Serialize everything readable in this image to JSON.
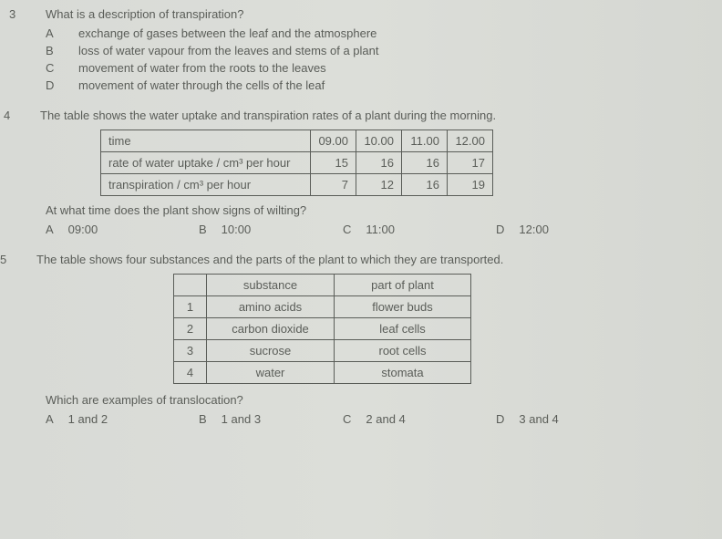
{
  "q3": {
    "number": "3",
    "text": "What is a description of transpiration?",
    "choices": {
      "A": "exchange of gases between the leaf and the atmosphere",
      "B": "loss of water vapour from the leaves and stems of a plant",
      "C": "movement of water from the roots to the leaves",
      "D": "movement of water through the cells of the leaf"
    }
  },
  "q4": {
    "number": "4",
    "text": "The table shows the water uptake and transpiration rates of a plant during the morning.",
    "table": {
      "rows": [
        {
          "label": "time",
          "c1": "09.00",
          "c2": "10.00",
          "c3": "11.00",
          "c4": "12.00"
        },
        {
          "label": "rate of water uptake / cm³ per hour",
          "c1": "15",
          "c2": "16",
          "c3": "16",
          "c4": "17"
        },
        {
          "label": "transpiration / cm³ per hour",
          "c1": "7",
          "c2": "12",
          "c3": "16",
          "c4": "19"
        }
      ]
    },
    "subtext": "At what time does the plant show signs of wilting?",
    "choices": {
      "A": "09:00",
      "B": "10:00",
      "C": "11:00",
      "D": "12:00"
    }
  },
  "q5": {
    "number": "5",
    "text": "The table shows four substances and the parts of the plant to which they are transported.",
    "table": {
      "headers": {
        "h1": "",
        "h2": "substance",
        "h3": "part of plant"
      },
      "rows": [
        {
          "idx": "1",
          "sub": "amino acids",
          "part": "flower buds"
        },
        {
          "idx": "2",
          "sub": "carbon dioxide",
          "part": "leaf cells"
        },
        {
          "idx": "3",
          "sub": "sucrose",
          "part": "root cells"
        },
        {
          "idx": "4",
          "sub": "water",
          "part": "stomata"
        }
      ]
    },
    "subtext": "Which are examples of translocation?",
    "choices": {
      "A": "1 and 2",
      "B": "1 and 3",
      "C": "2 and 4",
      "D": "3 and 4"
    }
  },
  "letters": {
    "A": "A",
    "B": "B",
    "C": "C",
    "D": "D"
  }
}
